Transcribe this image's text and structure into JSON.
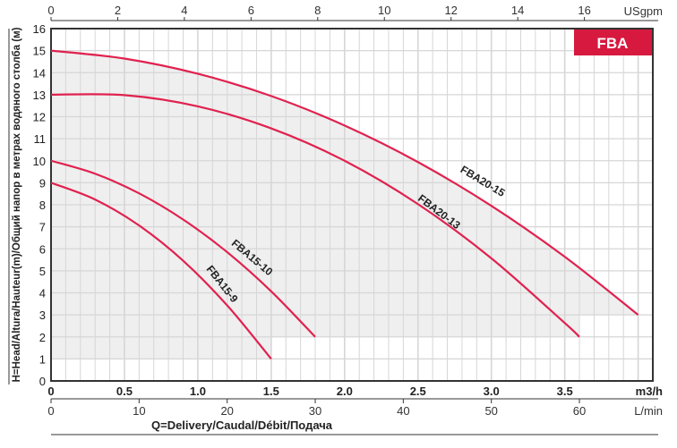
{
  "chart_data": {
    "type": "line",
    "badge": "FBA",
    "ylabel": "H=Head/Altura/Hauteur(m)/Общий напор в метрах водяного столба (м)",
    "xlabel": "Q=Delivery/Caudal/Débit/Подача",
    "x_unit_primary": "m3/h",
    "x_unit_secondary": "L/min",
    "x_unit_top": "USgpm",
    "xlim": [
      0,
      4.1
    ],
    "ylim": [
      0,
      16
    ],
    "grid": true,
    "x_ticks": [
      0,
      0.5,
      1.0,
      1.5,
      2.0,
      2.5,
      3.0,
      3.5
    ],
    "x_tick_labels": [
      "0",
      "0.5",
      "1.0",
      "1.5",
      "2.0",
      "2.5",
      "3.0",
      "3.5"
    ],
    "y_ticks": [
      0,
      1,
      2,
      3,
      4,
      5,
      6,
      7,
      8,
      9,
      10,
      11,
      12,
      13,
      14,
      15,
      16
    ],
    "lmin_ticks": [
      0,
      10,
      20,
      30,
      40,
      50,
      60
    ],
    "usgpm_ticks": [
      0,
      2,
      4,
      6,
      8,
      10,
      12,
      14,
      16
    ],
    "shaded_envelope_lower": [
      [
        0,
        1
      ],
      [
        1.5,
        1
      ],
      [
        1.5,
        2
      ],
      [
        3.6,
        2
      ],
      [
        3.6,
        3
      ],
      [
        4.0,
        3
      ]
    ],
    "series": [
      {
        "name": "FBA20-15",
        "x": [
          0,
          0.5,
          1,
          1.5,
          2,
          2.5,
          3,
          3.5,
          4.0
        ],
        "y": [
          15,
          14.64,
          13.95,
          12.94,
          11.6,
          9.94,
          7.95,
          5.64,
          3.0
        ]
      },
      {
        "name": "FBA20-13",
        "x": [
          0,
          0.5,
          1,
          1.5,
          2,
          2.5,
          3,
          3.5,
          3.6
        ],
        "y": [
          13,
          12.98,
          12.47,
          11.47,
          10.0,
          8.03,
          5.57,
          2.63,
          2.0
        ]
      },
      {
        "name": "FBA15-10",
        "x": [
          0,
          0.3,
          0.6,
          0.9,
          1.2,
          1.5,
          1.8
        ],
        "y": [
          10,
          9.41,
          8.52,
          7.33,
          5.85,
          4.07,
          2.0
        ]
      },
      {
        "name": "FBA15-9",
        "x": [
          0,
          0.3,
          0.6,
          0.9,
          1.2,
          1.5
        ],
        "y": [
          9,
          8.24,
          7.06,
          5.46,
          3.43,
          1.0
        ]
      }
    ],
    "colors": {
      "curve": "#e0224f",
      "badge": "#d7193f",
      "grid": "#d6d6d6",
      "shade": "#efefef"
    }
  }
}
